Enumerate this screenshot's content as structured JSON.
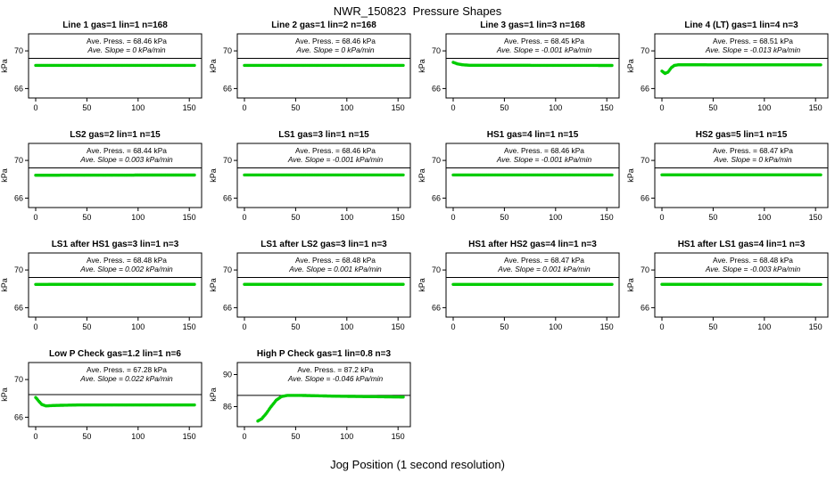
{
  "chart_data": {
    "type": "scatter",
    "title": "NWR_150823  Pressure Shapes",
    "xlabel": "Jog Position (1 second resolution)",
    "ylabel": "kPa",
    "marker_color": "#00CC00",
    "axis_color": "#000000",
    "x_ticks": [
      0,
      50,
      100,
      150
    ],
    "xlim": [
      -7,
      162
    ],
    "ylim": [
      65.0,
      71.8
    ],
    "yticks": [
      66,
      70
    ],
    "ref_line": 69.2,
    "panels": [
      {
        "title": "Line 1 gas=1 lin=1 n=168",
        "press": "Ave. Press. = 68.46 kPa",
        "slope": "Ave. Slope = 0 kPa/min",
        "ave_press_kpa": 68.46,
        "ave_slope_kpa_min": 0,
        "profile": [
          [
            0,
            68.46
          ],
          [
            155,
            68.46
          ]
        ]
      },
      {
        "title": "Line 2 gas=1 lin=2 n=168",
        "press": "Ave. Press. = 68.46 kPa",
        "slope": "Ave. Slope = 0 kPa/min",
        "ave_press_kpa": 68.46,
        "ave_slope_kpa_min": 0,
        "profile": [
          [
            0,
            68.46
          ],
          [
            155,
            68.46
          ]
        ]
      },
      {
        "title": "Line 3 gas=1 lin=3 n=168",
        "press": "Ave. Press. = 68.45 kPa",
        "slope": "Ave. Slope = -0.001 kPa/min",
        "ave_press_kpa": 68.45,
        "ave_slope_kpa_min": -0.001,
        "profile": [
          [
            0,
            68.78
          ],
          [
            4,
            68.62
          ],
          [
            9,
            68.52
          ],
          [
            16,
            68.47
          ],
          [
            155,
            68.45
          ]
        ]
      },
      {
        "title": "Line 4 (LT) gas=1 lin=4 n=3",
        "press": "Ave. Press. = 68.51 kPa",
        "slope": "Ave. Slope = -0.013 kPa/min",
        "ave_press_kpa": 68.51,
        "ave_slope_kpa_min": -0.013,
        "profile": [
          [
            0,
            67.85
          ],
          [
            3,
            67.6
          ],
          [
            6,
            67.75
          ],
          [
            9,
            68.2
          ],
          [
            12,
            68.45
          ],
          [
            16,
            68.52
          ],
          [
            155,
            68.51
          ]
        ]
      },
      {
        "title": "LS2 gas=2 lin=1 n=15",
        "press": "Ave. Press. = 68.44 kPa",
        "slope": "Ave. Slope = 0.003 kPa/min",
        "ave_press_kpa": 68.44,
        "ave_slope_kpa_min": 0.003,
        "profile": [
          [
            0,
            68.43
          ],
          [
            155,
            68.45
          ]
        ]
      },
      {
        "title": "LS1 gas=3 lin=1 n=15",
        "press": "Ave. Press. = 68.46 kPa",
        "slope": "Ave. Slope = -0.001 kPa/min",
        "ave_press_kpa": 68.46,
        "ave_slope_kpa_min": -0.001,
        "profile": [
          [
            0,
            68.46
          ],
          [
            155,
            68.46
          ]
        ]
      },
      {
        "title": "HS1 gas=4 lin=1 n=15",
        "press": "Ave. Press. = 68.46 kPa",
        "slope": "Ave. Slope = -0.001 kPa/min",
        "ave_press_kpa": 68.46,
        "ave_slope_kpa_min": -0.001,
        "profile": [
          [
            0,
            68.46
          ],
          [
            155,
            68.46
          ]
        ]
      },
      {
        "title": "HS2 gas=5 lin=1 n=15",
        "press": "Ave. Press. = 68.47 kPa",
        "slope": "Ave. Slope = 0 kPa/min",
        "ave_press_kpa": 68.47,
        "ave_slope_kpa_min": 0,
        "profile": [
          [
            0,
            68.47
          ],
          [
            155,
            68.47
          ]
        ]
      },
      {
        "title": "LS1 after HS1 gas=3 lin=1 n=3",
        "press": "Ave. Press. = 68.48 kPa",
        "slope": "Ave. Slope = 0.002 kPa/min",
        "ave_press_kpa": 68.48,
        "ave_slope_kpa_min": 0.002,
        "profile": [
          [
            0,
            68.47
          ],
          [
            155,
            68.48
          ]
        ]
      },
      {
        "title": "LS1 after LS2 gas=3 lin=1 n=3",
        "press": "Ave. Press. = 68.48 kPa",
        "slope": "Ave. Slope = 0.001 kPa/min",
        "ave_press_kpa": 68.48,
        "ave_slope_kpa_min": 0.001,
        "profile": [
          [
            0,
            68.48
          ],
          [
            155,
            68.48
          ]
        ]
      },
      {
        "title": "HS1 after HS2 gas=4 lin=1 n=3",
        "press": "Ave. Press. = 68.47 kPa",
        "slope": "Ave. Slope = 0.001 kPa/min",
        "ave_press_kpa": 68.47,
        "ave_slope_kpa_min": 0.001,
        "profile": [
          [
            0,
            68.47
          ],
          [
            155,
            68.47
          ]
        ]
      },
      {
        "title": "HS1 after LS1 gas=4 lin=1 n=3",
        "press": "Ave. Press. = 68.48 kPa",
        "slope": "Ave. Slope = -0.003 kPa/min",
        "ave_press_kpa": 68.48,
        "ave_slope_kpa_min": -0.003,
        "profile": [
          [
            0,
            68.48
          ],
          [
            155,
            68.47
          ]
        ]
      },
      {
        "title": "Low P Check gas=1.2 lin=1 n=6",
        "press": "Ave. Press. = 67.28 kPa",
        "slope": "Ave. Slope = 0.022 kPa/min",
        "ave_press_kpa": 67.28,
        "ave_slope_kpa_min": 0.022,
        "ref_line": 68.4,
        "profile": [
          [
            0,
            68.1
          ],
          [
            3,
            67.7
          ],
          [
            6,
            67.35
          ],
          [
            10,
            67.2
          ],
          [
            18,
            67.25
          ],
          [
            40,
            67.3
          ],
          [
            155,
            67.3
          ]
        ]
      },
      {
        "title": "High P Check gas=1 lin=0.8 n=3",
        "press": "Ave. Press. = 87.2 kPa",
        "slope": "Ave. Slope = -0.046 kPa/min",
        "ave_press_kpa": 87.2,
        "ave_slope_kpa_min": -0.046,
        "ylim": [
          83.5,
          91.5
        ],
        "yticks": [
          86,
          90
        ],
        "ref_line": 87.4,
        "profile": [
          [
            13,
            84.2
          ],
          [
            17,
            84.5
          ],
          [
            21,
            85.1
          ],
          [
            26,
            86.0
          ],
          [
            31,
            86.8
          ],
          [
            36,
            87.25
          ],
          [
            42,
            87.4
          ],
          [
            55,
            87.4
          ],
          [
            90,
            87.3
          ],
          [
            155,
            87.2
          ]
        ]
      }
    ]
  }
}
